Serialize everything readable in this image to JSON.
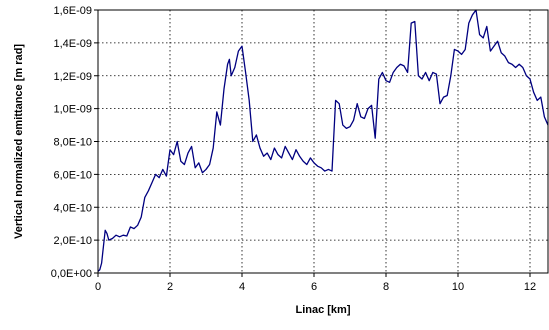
{
  "chart_data": {
    "type": "line",
    "title": "",
    "xlabel": "Linac [km]",
    "ylabel": "Vertical normalized emittance [m rad]",
    "xlim": [
      0,
      12.5
    ],
    "ylim": [
      0,
      1.6e-09
    ],
    "x_ticks": [
      0,
      2,
      4,
      6,
      8,
      10,
      12
    ],
    "x_tick_labels": [
      "0",
      "2",
      "4",
      "6",
      "8",
      "10",
      "12"
    ],
    "y_ticks": [
      0,
      2e-10,
      4e-10,
      6e-10,
      8e-10,
      1e-09,
      1.2e-09,
      1.4e-09,
      1.6e-09
    ],
    "y_tick_labels": [
      "0,0E+00",
      "2,0E-10",
      "4,0E-10",
      "6,0E-10",
      "8,0E-10",
      "1,0E-09",
      "1,2E-09",
      "1,4E-09",
      "1,6E-09"
    ],
    "grid": true,
    "legend": "none",
    "line_color": "#000080",
    "series": [
      {
        "x": [
          0.0,
          0.05,
          0.1,
          0.15,
          0.2,
          0.25,
          0.3,
          0.4,
          0.5,
          0.6,
          0.7,
          0.8,
          0.9,
          1.0,
          1.1,
          1.2,
          1.3,
          1.4,
          1.5,
          1.6,
          1.7,
          1.8,
          1.9,
          2.0,
          2.1,
          2.2,
          2.3,
          2.4,
          2.5,
          2.6,
          2.7,
          2.8,
          2.9,
          3.0,
          3.1,
          3.2,
          3.3,
          3.4,
          3.5,
          3.6,
          3.65,
          3.7,
          3.8,
          3.9,
          4.0,
          4.1,
          4.2,
          4.3,
          4.4,
          4.5,
          4.6,
          4.7,
          4.8,
          4.9,
          5.0,
          5.1,
          5.2,
          5.3,
          5.4,
          5.5,
          5.6,
          5.7,
          5.8,
          5.9,
          6.0,
          6.1,
          6.2,
          6.3,
          6.4,
          6.5,
          6.6,
          6.7,
          6.8,
          6.9,
          7.0,
          7.1,
          7.2,
          7.3,
          7.4,
          7.5,
          7.6,
          7.7,
          7.8,
          7.9,
          8.0,
          8.1,
          8.2,
          8.3,
          8.4,
          8.5,
          8.6,
          8.7,
          8.8,
          8.9,
          9.0,
          9.1,
          9.2,
          9.3,
          9.4,
          9.5,
          9.6,
          9.7,
          9.8,
          9.9,
          10.0,
          10.1,
          10.2,
          10.3,
          10.4,
          10.5,
          10.6,
          10.7,
          10.8,
          10.9,
          11.0,
          11.1,
          11.2,
          11.3,
          11.4,
          11.5,
          11.6,
          11.7,
          11.8,
          11.9,
          12.0,
          12.1,
          12.2,
          12.3,
          12.4,
          12.5
        ],
        "y": [
          1e-11,
          2e-11,
          6e-11,
          1.6e-10,
          2.6e-10,
          2.4e-10,
          2e-10,
          2.1e-10,
          2.3e-10,
          2.2e-10,
          2.3e-10,
          2.25e-10,
          2.8e-10,
          2.7e-10,
          2.9e-10,
          3.4e-10,
          4.6e-10,
          5e-10,
          5.5e-10,
          6e-10,
          5.8e-10,
          6.3e-10,
          5.9e-10,
          7.5e-10,
          7.2e-10,
          8e-10,
          6.8e-10,
          6.6e-10,
          7.3e-10,
          7.7e-10,
          6.4e-10,
          6.7e-10,
          6.1e-10,
          6.3e-10,
          6.6e-10,
          7.6e-10,
          9.8e-10,
          9e-10,
          1.12e-09,
          1.27e-09,
          1.3e-09,
          1.2e-09,
          1.25e-09,
          1.35e-09,
          1.38e-09,
          1.22e-09,
          1.05e-09,
          8e-10,
          8.4e-10,
          7.6e-10,
          7.1e-10,
          7.3e-10,
          6.9e-10,
          7.6e-10,
          7.2e-10,
          7e-10,
          7.7e-10,
          7.3e-10,
          6.9e-10,
          7.5e-10,
          7.1e-10,
          6.8e-10,
          6.6e-10,
          7e-10,
          6.7e-10,
          6.5e-10,
          6.4e-10,
          6.2e-10,
          6.3e-10,
          6.2e-10,
          1.05e-09,
          1.03e-09,
          9e-10,
          8.8e-10,
          8.9e-10,
          9.3e-10,
          1.03e-09,
          9.5e-10,
          9.4e-10,
          1e-09,
          1.02e-09,
          8.2e-10,
          1.18e-09,
          1.22e-09,
          1.17e-09,
          1.16e-09,
          1.22e-09,
          1.25e-09,
          1.27e-09,
          1.26e-09,
          1.22e-09,
          1.52e-09,
          1.53e-09,
          1.2e-09,
          1.18e-09,
          1.22e-09,
          1.17e-09,
          1.22e-09,
          1.21e-09,
          1.03e-09,
          1.07e-09,
          1.08e-09,
          1.2e-09,
          1.36e-09,
          1.35e-09,
          1.33e-09,
          1.36e-09,
          1.52e-09,
          1.57e-09,
          1.6e-09,
          1.45e-09,
          1.43e-09,
          1.5e-09,
          1.35e-09,
          1.38e-09,
          1.41e-09,
          1.34e-09,
          1.32e-09,
          1.28e-09,
          1.27e-09,
          1.25e-09,
          1.27e-09,
          1.25e-09,
          1.2e-09,
          1.18e-09,
          1.1e-09,
          1.05e-09,
          1.07e-09,
          9.5e-10,
          9e-10
        ]
      }
    ]
  }
}
